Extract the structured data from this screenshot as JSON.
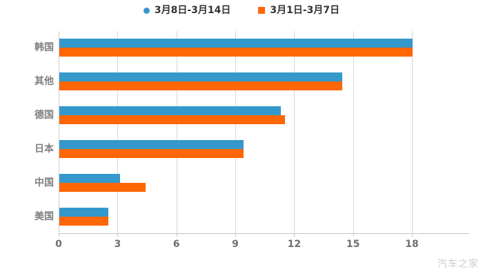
{
  "chart_data": {
    "type": "bar",
    "orientation": "horizontal",
    "title": "",
    "categories": [
      "韩国",
      "其他",
      "德国",
      "日本",
      "中国",
      "美国"
    ],
    "series": [
      {
        "name": "3月8日-3月14日",
        "color": "#3498CB",
        "marker": "circle",
        "values": [
          18,
          14.4,
          11.3,
          9.4,
          3.1,
          2.5
        ]
      },
      {
        "name": "3月1日-3月7日",
        "color": "#FF6605",
        "marker": "square",
        "values": [
          18,
          14.4,
          11.5,
          9.4,
          4.4,
          2.5
        ]
      }
    ],
    "xlim": [
      0,
      18
    ],
    "xticks": [
      0,
      3,
      6,
      9,
      12,
      15,
      18
    ],
    "grid": true,
    "legend_position": "top"
  },
  "watermark": "汽车之家",
  "colors": {
    "series_blue": "#3498CB",
    "series_orange": "#FF6605",
    "gridline": "#d6d6d6",
    "axis": "#c4c4c4",
    "category_label": "#7f7f7f",
    "tick_label": "#6f6f6f",
    "legend_text": "#333333",
    "watermark": "#cccccc",
    "background": "#ffffff"
  }
}
